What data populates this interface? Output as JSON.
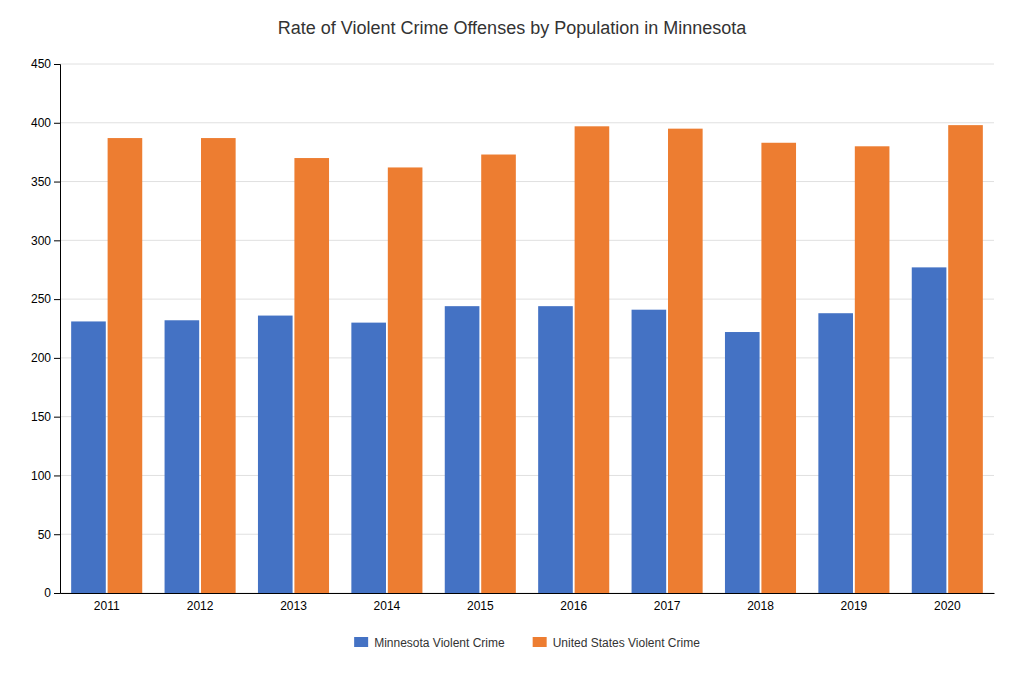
{
  "chart_data": {
    "type": "bar",
    "title": "Rate of Violent Crime Offenses by Population in Minnesota",
    "categories": [
      "2011",
      "2012",
      "2013",
      "2014",
      "2015",
      "2016",
      "2017",
      "2018",
      "2019",
      "2020"
    ],
    "series": [
      {
        "name": "Minnesota Violent Crime",
        "color": "#4472C4",
        "values": [
          231,
          232,
          236,
          230,
          244,
          244,
          241,
          222,
          238,
          277
        ]
      },
      {
        "name": "United States Violent Crime",
        "color": "#ED7D31",
        "values": [
          387,
          387,
          370,
          362,
          373,
          397,
          395,
          383,
          380,
          398
        ]
      }
    ],
    "ylim": [
      0,
      450
    ],
    "yticks": [
      0,
      50,
      100,
      150,
      200,
      250,
      300,
      350,
      400,
      450
    ],
    "grid": true,
    "legend": "bottom"
  }
}
